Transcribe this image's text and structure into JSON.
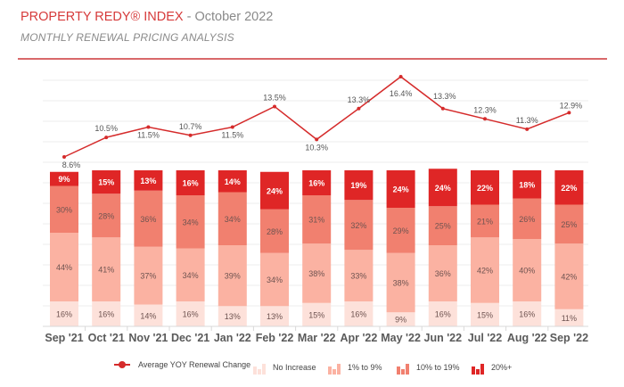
{
  "header": {
    "brand": "PROPERTY REDY® INDEX",
    "date": " - October 2022",
    "subtitle": "MONTHLY RENEWAL PRICING ANALYSIS"
  },
  "colors": {
    "brand": "#d63a3a",
    "no_increase": "#fde1da",
    "one_to_nine": "#fbb2a2",
    "ten_to_nineteen": "#f1806f",
    "twenty_plus": "#df2626",
    "line": "#d52b2b"
  },
  "chart_data": {
    "type": "bar+line",
    "title": "MONTHLY RENEWAL PRICING ANALYSIS",
    "categories": [
      "Sep '21",
      "Oct '21",
      "Nov '21",
      "Dec '21",
      "Jan '22",
      "Feb '22",
      "Mar '22",
      "Apr '22",
      "May '22",
      "Jun '22",
      "Jul '22",
      "Aug '22",
      "Sep '22"
    ],
    "stack_order": "bottom-to-top",
    "series": [
      {
        "name": "No Increase",
        "type": "stacked-bar",
        "values": [
          16,
          16,
          14,
          16,
          13,
          13,
          15,
          16,
          9,
          16,
          15,
          16,
          11
        ]
      },
      {
        "name": "1% to 9%",
        "type": "stacked-bar",
        "values": [
          44,
          41,
          37,
          34,
          39,
          34,
          38,
          33,
          38,
          36,
          42,
          40,
          42
        ]
      },
      {
        "name": "10% to 19%",
        "type": "stacked-bar",
        "values": [
          30,
          28,
          36,
          34,
          34,
          28,
          31,
          32,
          29,
          25,
          21,
          26,
          25
        ]
      },
      {
        "name": "20%+",
        "type": "stacked-bar",
        "values": [
          9,
          15,
          13,
          16,
          14,
          24,
          16,
          19,
          24,
          24,
          22,
          18,
          22
        ]
      },
      {
        "name": "Average YOY Renewal Change",
        "type": "line",
        "values": [
          8.6,
          10.5,
          11.5,
          10.7,
          11.5,
          13.5,
          10.3,
          13.3,
          16.4,
          13.3,
          12.3,
          11.3,
          12.9
        ]
      }
    ],
    "bar_labels": [
      [
        "16%",
        "44%",
        "30%",
        "9%"
      ],
      [
        "16%",
        "41%",
        "28%",
        "15%"
      ],
      [
        "14%",
        "37%",
        "36%",
        "13%"
      ],
      [
        "16%",
        "34%",
        "34%",
        "16%"
      ],
      [
        "13%",
        "39%",
        "34%",
        "14%"
      ],
      [
        "13%",
        "34%",
        "28%",
        "24%"
      ],
      [
        "15%",
        "38%",
        "31%",
        "16%"
      ],
      [
        "16%",
        "33%",
        "32%",
        "19%"
      ],
      [
        "9%",
        "38%",
        "29%",
        "24%"
      ],
      [
        "16%",
        "36%",
        "25%",
        "24%"
      ],
      [
        "15%",
        "42%",
        "21%",
        "22%"
      ],
      [
        "16%",
        "40%",
        "26%",
        "18%"
      ],
      [
        "11%",
        "42%",
        "25%",
        "22%"
      ]
    ],
    "line_labels": [
      "8.6%",
      "10.5%",
      "11.5%",
      "10.7%",
      "11.5%",
      "13.5%",
      "10.3%",
      "13.3%",
      "16.4%",
      "13.3%",
      "12.3%",
      "11.3%",
      "12.9%"
    ],
    "grid": true,
    "legend_position": "bottom"
  },
  "legend": [
    {
      "label": "Average YOY Renewal Change",
      "icon": "line-marker-icon"
    },
    {
      "label": "No Increase",
      "icon": "bar-icon"
    },
    {
      "label": "1% to 9%",
      "icon": "bar-icon"
    },
    {
      "label": "10% to 19%",
      "icon": "bar-icon"
    },
    {
      "label": "20%+",
      "icon": "bar-icon"
    }
  ]
}
